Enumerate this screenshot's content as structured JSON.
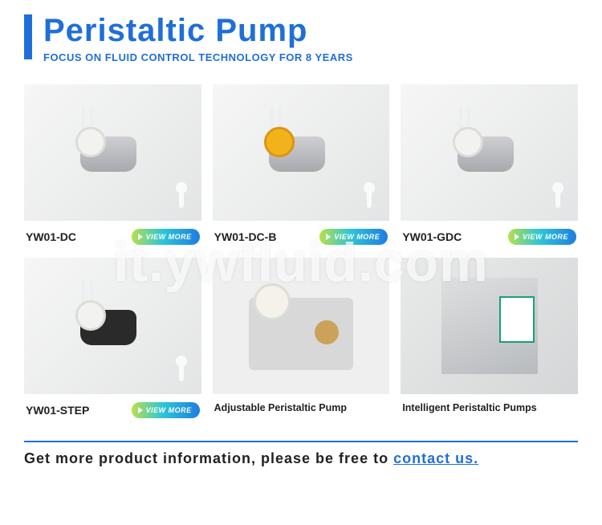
{
  "header": {
    "title": "Peristaltic Pump",
    "subtitle": "FOCUS ON FLUID CONTROL TECHNOLOGY FOR 8 YEARS",
    "accent_color": "#1f6fd8"
  },
  "view_more_label": "VIEW MORE",
  "products": [
    {
      "label": "YW01-DC",
      "has_button": true,
      "variant": "default"
    },
    {
      "label": "YW01-DC-B",
      "has_button": true,
      "variant": "yellow"
    },
    {
      "label": "YW01-GDC",
      "has_button": true,
      "variant": "default"
    },
    {
      "label": "YW01-STEP",
      "has_button": true,
      "variant": "step"
    },
    {
      "label": "Adjustable Peristaltic Pump",
      "has_button": false,
      "variant": "big"
    },
    {
      "label": "Intelligent Peristaltic Pumps",
      "has_button": false,
      "variant": "box"
    }
  ],
  "cta": {
    "prefix": "Get more product information, please be free to ",
    "link_text": "contact us."
  },
  "watermark": "it.ywfluid.com"
}
